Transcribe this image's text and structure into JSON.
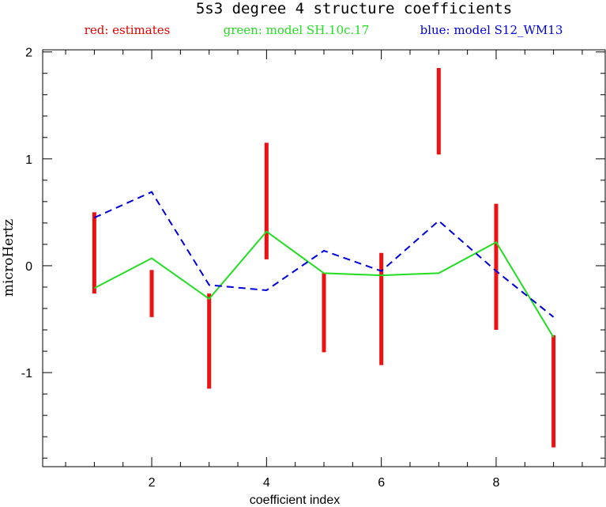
{
  "chart_data": {
    "type": "line",
    "title": "5s3 degree 4 structure coefficients",
    "xlabel": "coefficient index",
    "ylabel": "microHertz",
    "xlim": [
      0.1,
      9.9
    ],
    "ylim": [
      -1.88,
      2.02
    ],
    "x_ticks": [
      2,
      4,
      6,
      8
    ],
    "x_tick_labels": [
      "2",
      "4",
      "6",
      "8"
    ],
    "y_ticks": [
      -1,
      0,
      1,
      2
    ],
    "y_tick_labels": [
      "-1",
      "0",
      "1",
      "2"
    ],
    "grid": false,
    "legend_position": "top",
    "legend": [
      {
        "label": "red: estimates",
        "color": "#e00000"
      },
      {
        "label": "green: model SH.10c.17",
        "color": "#22dd22"
      },
      {
        "label": "blue: model S12_WM13",
        "color": "#0000dd"
      }
    ],
    "error_bars": {
      "color": "#ee1111",
      "x": [
        1,
        2,
        3,
        4,
        5,
        6,
        7,
        8,
        9
      ],
      "low": [
        -0.26,
        -0.48,
        -1.15,
        0.06,
        -0.81,
        -0.93,
        1.04,
        -0.6,
        -1.7
      ],
      "high": [
        0.5,
        -0.04,
        -0.26,
        1.15,
        -0.07,
        0.12,
        1.85,
        0.58,
        -0.65
      ]
    },
    "series": [
      {
        "color": "#22dd22",
        "style": "solid",
        "x": [
          1,
          2,
          3,
          4,
          5,
          6,
          7,
          8,
          9
        ],
        "values": [
          -0.21,
          0.07,
          -0.31,
          0.32,
          -0.07,
          -0.09,
          -0.07,
          0.22,
          -0.67
        ]
      },
      {
        "color": "#0000dd",
        "style": "dashed",
        "x": [
          1,
          2,
          3,
          4,
          5,
          6,
          7,
          8,
          9
        ],
        "values": [
          0.45,
          0.69,
          -0.18,
          -0.23,
          0.14,
          -0.05,
          0.42,
          -0.05,
          -0.48
        ]
      }
    ]
  }
}
